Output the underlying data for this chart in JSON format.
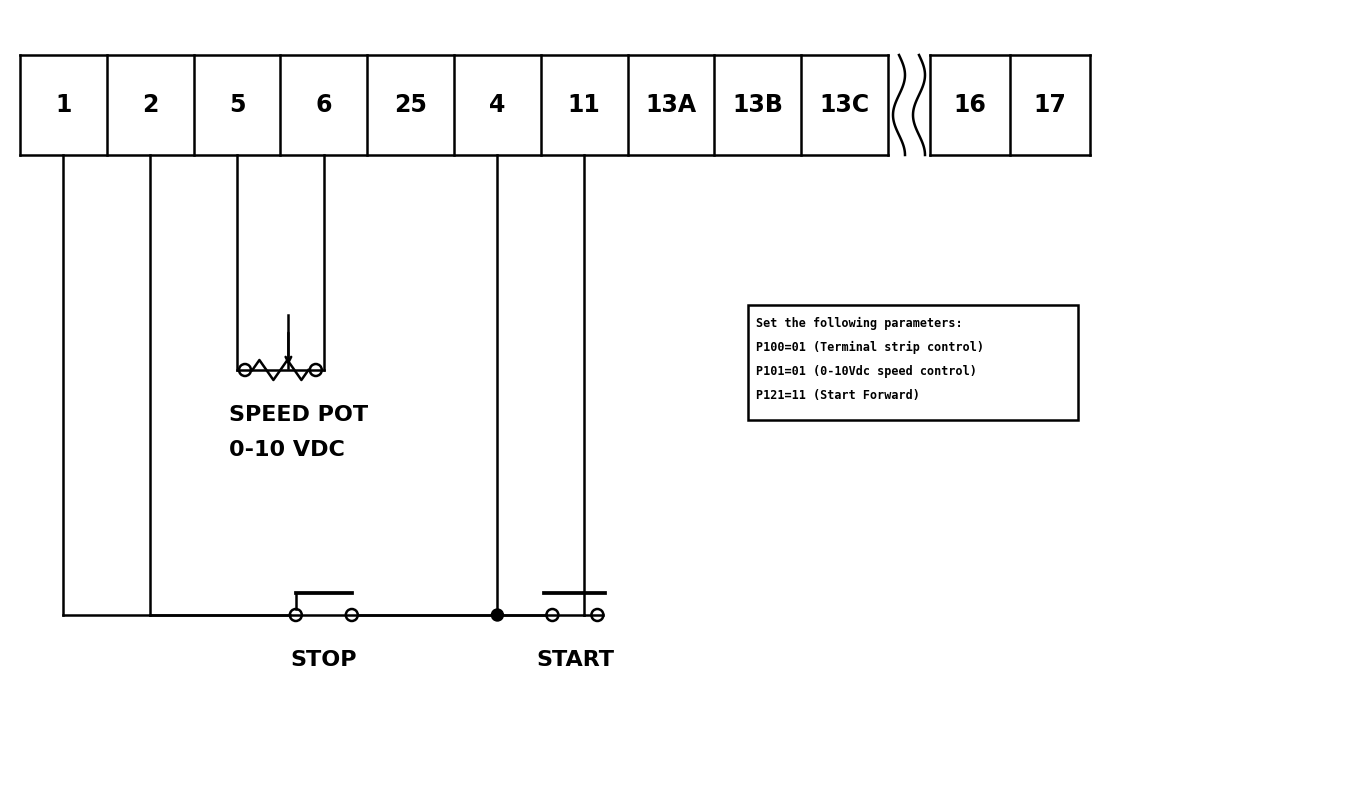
{
  "terminal_labels": [
    "1",
    "2",
    "5",
    "6",
    "25",
    "4",
    "11",
    "13A",
    "13B",
    "13C",
    "16",
    "17"
  ],
  "bg_color": "#ffffff",
  "line_color": "#000000",
  "text_color": "#000000",
  "box_text_lines": [
    "Set the following parameters:",
    "P100=01 (Terminal strip control)",
    "P101=01 (0-10Vdc speed control)",
    "P121=11 (Start Forward)"
  ],
  "speed_pot_label_line1": "SPEED POT",
  "speed_pot_label_line2": "0-10 VDC",
  "stop_label": "STOP",
  "start_label": "START"
}
